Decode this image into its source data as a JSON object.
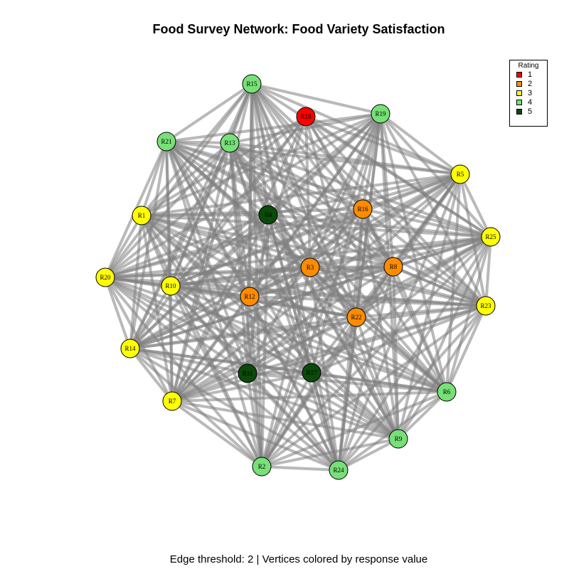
{
  "title": "Food Survey Network: Food Variety Satisfaction",
  "caption": "Edge threshold: 2 | Vertices colored by response value",
  "legend": {
    "title": "Rating",
    "items": [
      {
        "label": "1",
        "color": "#ff0000"
      },
      {
        "label": "2",
        "color": "#ff8c00"
      },
      {
        "label": "3",
        "color": "#ffff00"
      },
      {
        "label": "4",
        "color": "#77e077"
      },
      {
        "label": "5",
        "color": "#0a4a0a"
      }
    ]
  },
  "nodes": [
    {
      "id": "R1",
      "rating": 3
    },
    {
      "id": "R2",
      "rating": 4
    },
    {
      "id": "R3",
      "rating": 2
    },
    {
      "id": "R4",
      "rating": 5
    },
    {
      "id": "R5",
      "rating": 3
    },
    {
      "id": "R6",
      "rating": 4
    },
    {
      "id": "R7",
      "rating": 3
    },
    {
      "id": "R8",
      "rating": 2
    },
    {
      "id": "R9",
      "rating": 4
    },
    {
      "id": "R10",
      "rating": 3
    },
    {
      "id": "R11",
      "rating": 5
    },
    {
      "id": "R12",
      "rating": 2
    },
    {
      "id": "R13",
      "rating": 4
    },
    {
      "id": "R14",
      "rating": 3
    },
    {
      "id": "R15",
      "rating": 4
    },
    {
      "id": "R16",
      "rating": 2
    },
    {
      "id": "R17",
      "rating": 5
    },
    {
      "id": "R18",
      "rating": 1
    },
    {
      "id": "R19",
      "rating": 4
    },
    {
      "id": "R20",
      "rating": 3
    },
    {
      "id": "R21",
      "rating": 4
    },
    {
      "id": "R22",
      "rating": 2
    },
    {
      "id": "R23",
      "rating": 3
    },
    {
      "id": "R24",
      "rating": 4
    },
    {
      "id": "R25",
      "rating": 3
    }
  ],
  "edge_rule": "connect respondents whose ratings differ by at most 2"
}
